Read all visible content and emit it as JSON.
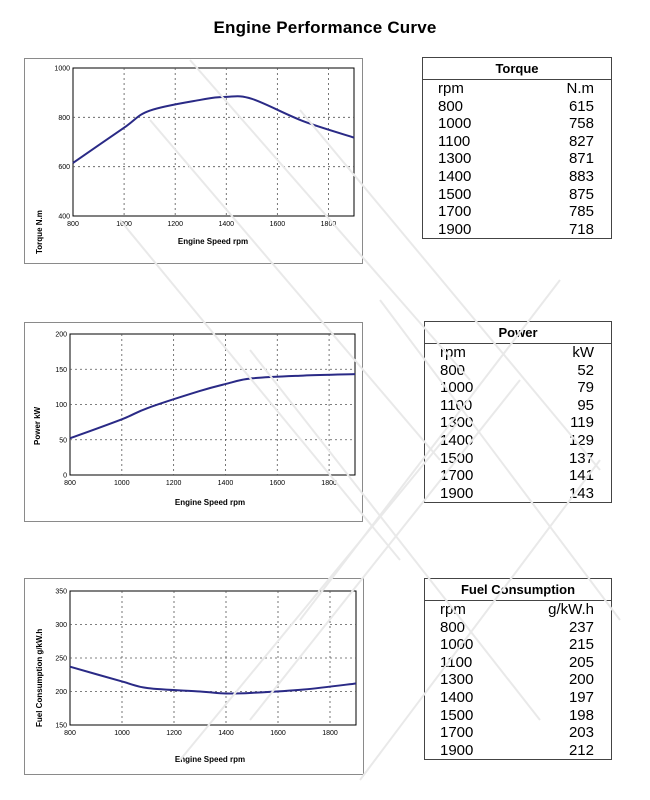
{
  "page": {
    "title": "Engine Performance Curve"
  },
  "chart_data": [
    {
      "type": "line",
      "xlabel": "Engine Speed rpm",
      "ylabel": "Torque N.m",
      "xlim": [
        800,
        1900
      ],
      "ylim": [
        400,
        1000
      ],
      "xticks": [
        800,
        1000,
        1200,
        1400,
        1600,
        1800
      ],
      "yticks": [
        400,
        600,
        800,
        1000
      ],
      "grid": true,
      "series": [
        {
          "x": [
            800,
            1000,
            1100,
            1300,
            1400,
            1500,
            1700,
            1900
          ],
          "values": [
            615,
            758,
            827,
            871,
            883,
            875,
            785,
            718
          ],
          "color": "#2a2a86"
        }
      ]
    },
    {
      "type": "line",
      "xlabel": "Engine Speed rpm",
      "ylabel": "Power kW",
      "xlim": [
        800,
        1900
      ],
      "ylim": [
        0,
        200
      ],
      "xticks": [
        800,
        1000,
        1200,
        1400,
        1600,
        1800
      ],
      "yticks": [
        0,
        50,
        100,
        150,
        200
      ],
      "grid": true,
      "series": [
        {
          "x": [
            800,
            1000,
            1100,
            1300,
            1400,
            1500,
            1700,
            1900
          ],
          "values": [
            52,
            79,
            95,
            119,
            129,
            137,
            141,
            143
          ],
          "color": "#2a2a86"
        }
      ]
    },
    {
      "type": "line",
      "xlabel": "Engine Speed rpm",
      "ylabel": "Fuel Consumption g/kW.h",
      "xlim": [
        800,
        1900
      ],
      "ylim": [
        150,
        350
      ],
      "xticks": [
        800,
        1000,
        1200,
        1400,
        1600,
        1800
      ],
      "yticks": [
        150,
        200,
        250,
        300,
        350
      ],
      "grid": true,
      "series": [
        {
          "x": [
            800,
            1000,
            1100,
            1300,
            1400,
            1500,
            1700,
            1900
          ],
          "values": [
            237,
            215,
            205,
            200,
            197,
            198,
            203,
            212
          ],
          "color": "#2a2a86"
        }
      ]
    }
  ],
  "tables": [
    {
      "title": "Torque",
      "col1": "rpm",
      "col2": "N.m",
      "rows": [
        [
          "800",
          "615"
        ],
        [
          "1000",
          "758"
        ],
        [
          "1100",
          "827"
        ],
        [
          "1300",
          "871"
        ],
        [
          "1400",
          "883"
        ],
        [
          "1500",
          "875"
        ],
        [
          "1700",
          "785"
        ],
        [
          "1900",
          "718"
        ]
      ]
    },
    {
      "title": "Power",
      "col1": "rpm",
      "col2": "kW",
      "rows": [
        [
          "800",
          "52"
        ],
        [
          "1000",
          "79"
        ],
        [
          "1100",
          "95"
        ],
        [
          "1300",
          "119"
        ],
        [
          "1400",
          "129"
        ],
        [
          "1500",
          "137"
        ],
        [
          "1700",
          "141"
        ],
        [
          "1900",
          "143"
        ]
      ]
    },
    {
      "title": "Fuel Consumption",
      "col1": "rpm",
      "col2": "g/kW.h",
      "rows": [
        [
          "800",
          "237"
        ],
        [
          "1000",
          "215"
        ],
        [
          "1100",
          "205"
        ],
        [
          "1300",
          "200"
        ],
        [
          "1400",
          "197"
        ],
        [
          "1500",
          "198"
        ],
        [
          "1700",
          "203"
        ],
        [
          "1900",
          "212"
        ]
      ]
    }
  ]
}
